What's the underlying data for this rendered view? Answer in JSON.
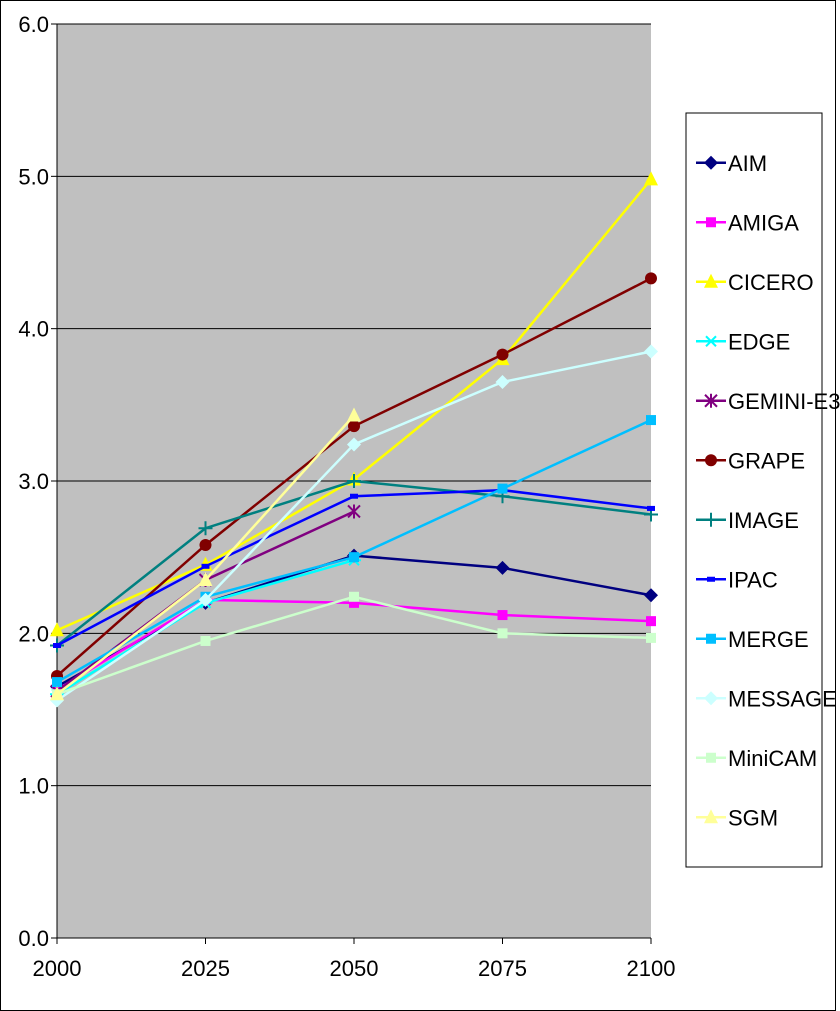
{
  "chart_data": {
    "type": "line",
    "title": "",
    "xlabel": "",
    "ylabel": "",
    "x": [
      "2000",
      "2025",
      "2050",
      "2075",
      "2100"
    ],
    "ylim": [
      0,
      6
    ],
    "yticks": [
      "0.0",
      "1.0",
      "2.0",
      "3.0",
      "4.0",
      "5.0",
      "6.0"
    ],
    "grid": "horizontal",
    "plot_background": "#c0c0c0",
    "legend_position": "right",
    "series": [
      {
        "name": "AIM",
        "color": "#000080",
        "marker": "diamond",
        "values": [
          1.65,
          2.2,
          2.51,
          2.43,
          2.25
        ]
      },
      {
        "name": "AMIGA",
        "color": "#ff00ff",
        "marker": "square",
        "values": [
          1.63,
          2.22,
          2.2,
          2.12,
          2.08
        ]
      },
      {
        "name": "CICERO",
        "color": "#ffff00",
        "marker": "triangle",
        "values": [
          2.02,
          2.45,
          3.01,
          3.8,
          4.98
        ]
      },
      {
        "name": "EDGE",
        "color": "#00ffff",
        "marker": "asterisk",
        "values": [
          1.6,
          2.2,
          2.48,
          null,
          null
        ]
      },
      {
        "name": "GEMINI-E3",
        "color": "#800080",
        "marker": "star",
        "values": [
          1.62,
          2.35,
          2.8,
          null,
          null
        ]
      },
      {
        "name": "GRAPE",
        "color": "#800000",
        "marker": "circle",
        "values": [
          1.72,
          2.58,
          3.36,
          3.83,
          4.33
        ]
      },
      {
        "name": "IMAGE",
        "color": "#008080",
        "marker": "plus",
        "values": [
          1.92,
          2.69,
          3.0,
          2.9,
          2.78
        ]
      },
      {
        "name": "IPAC",
        "color": "#0000ff",
        "marker": "dash",
        "values": [
          1.92,
          2.44,
          2.9,
          2.94,
          2.82
        ]
      },
      {
        "name": "MERGE",
        "color": "#00bfff",
        "marker": "square",
        "values": [
          1.68,
          2.24,
          2.5,
          2.95,
          3.4
        ]
      },
      {
        "name": "MESSAGE",
        "color": "#ccffff",
        "marker": "diamond",
        "values": [
          1.56,
          2.22,
          3.24,
          3.65,
          3.85
        ]
      },
      {
        "name": "MiniCAM",
        "color": "#ccffcc",
        "marker": "square",
        "values": [
          1.6,
          1.95,
          2.24,
          2.0,
          1.97
        ]
      },
      {
        "name": "SGM",
        "color": "#ffff99",
        "marker": "triangle",
        "values": [
          1.6,
          2.35,
          3.43,
          null,
          null
        ]
      }
    ]
  }
}
